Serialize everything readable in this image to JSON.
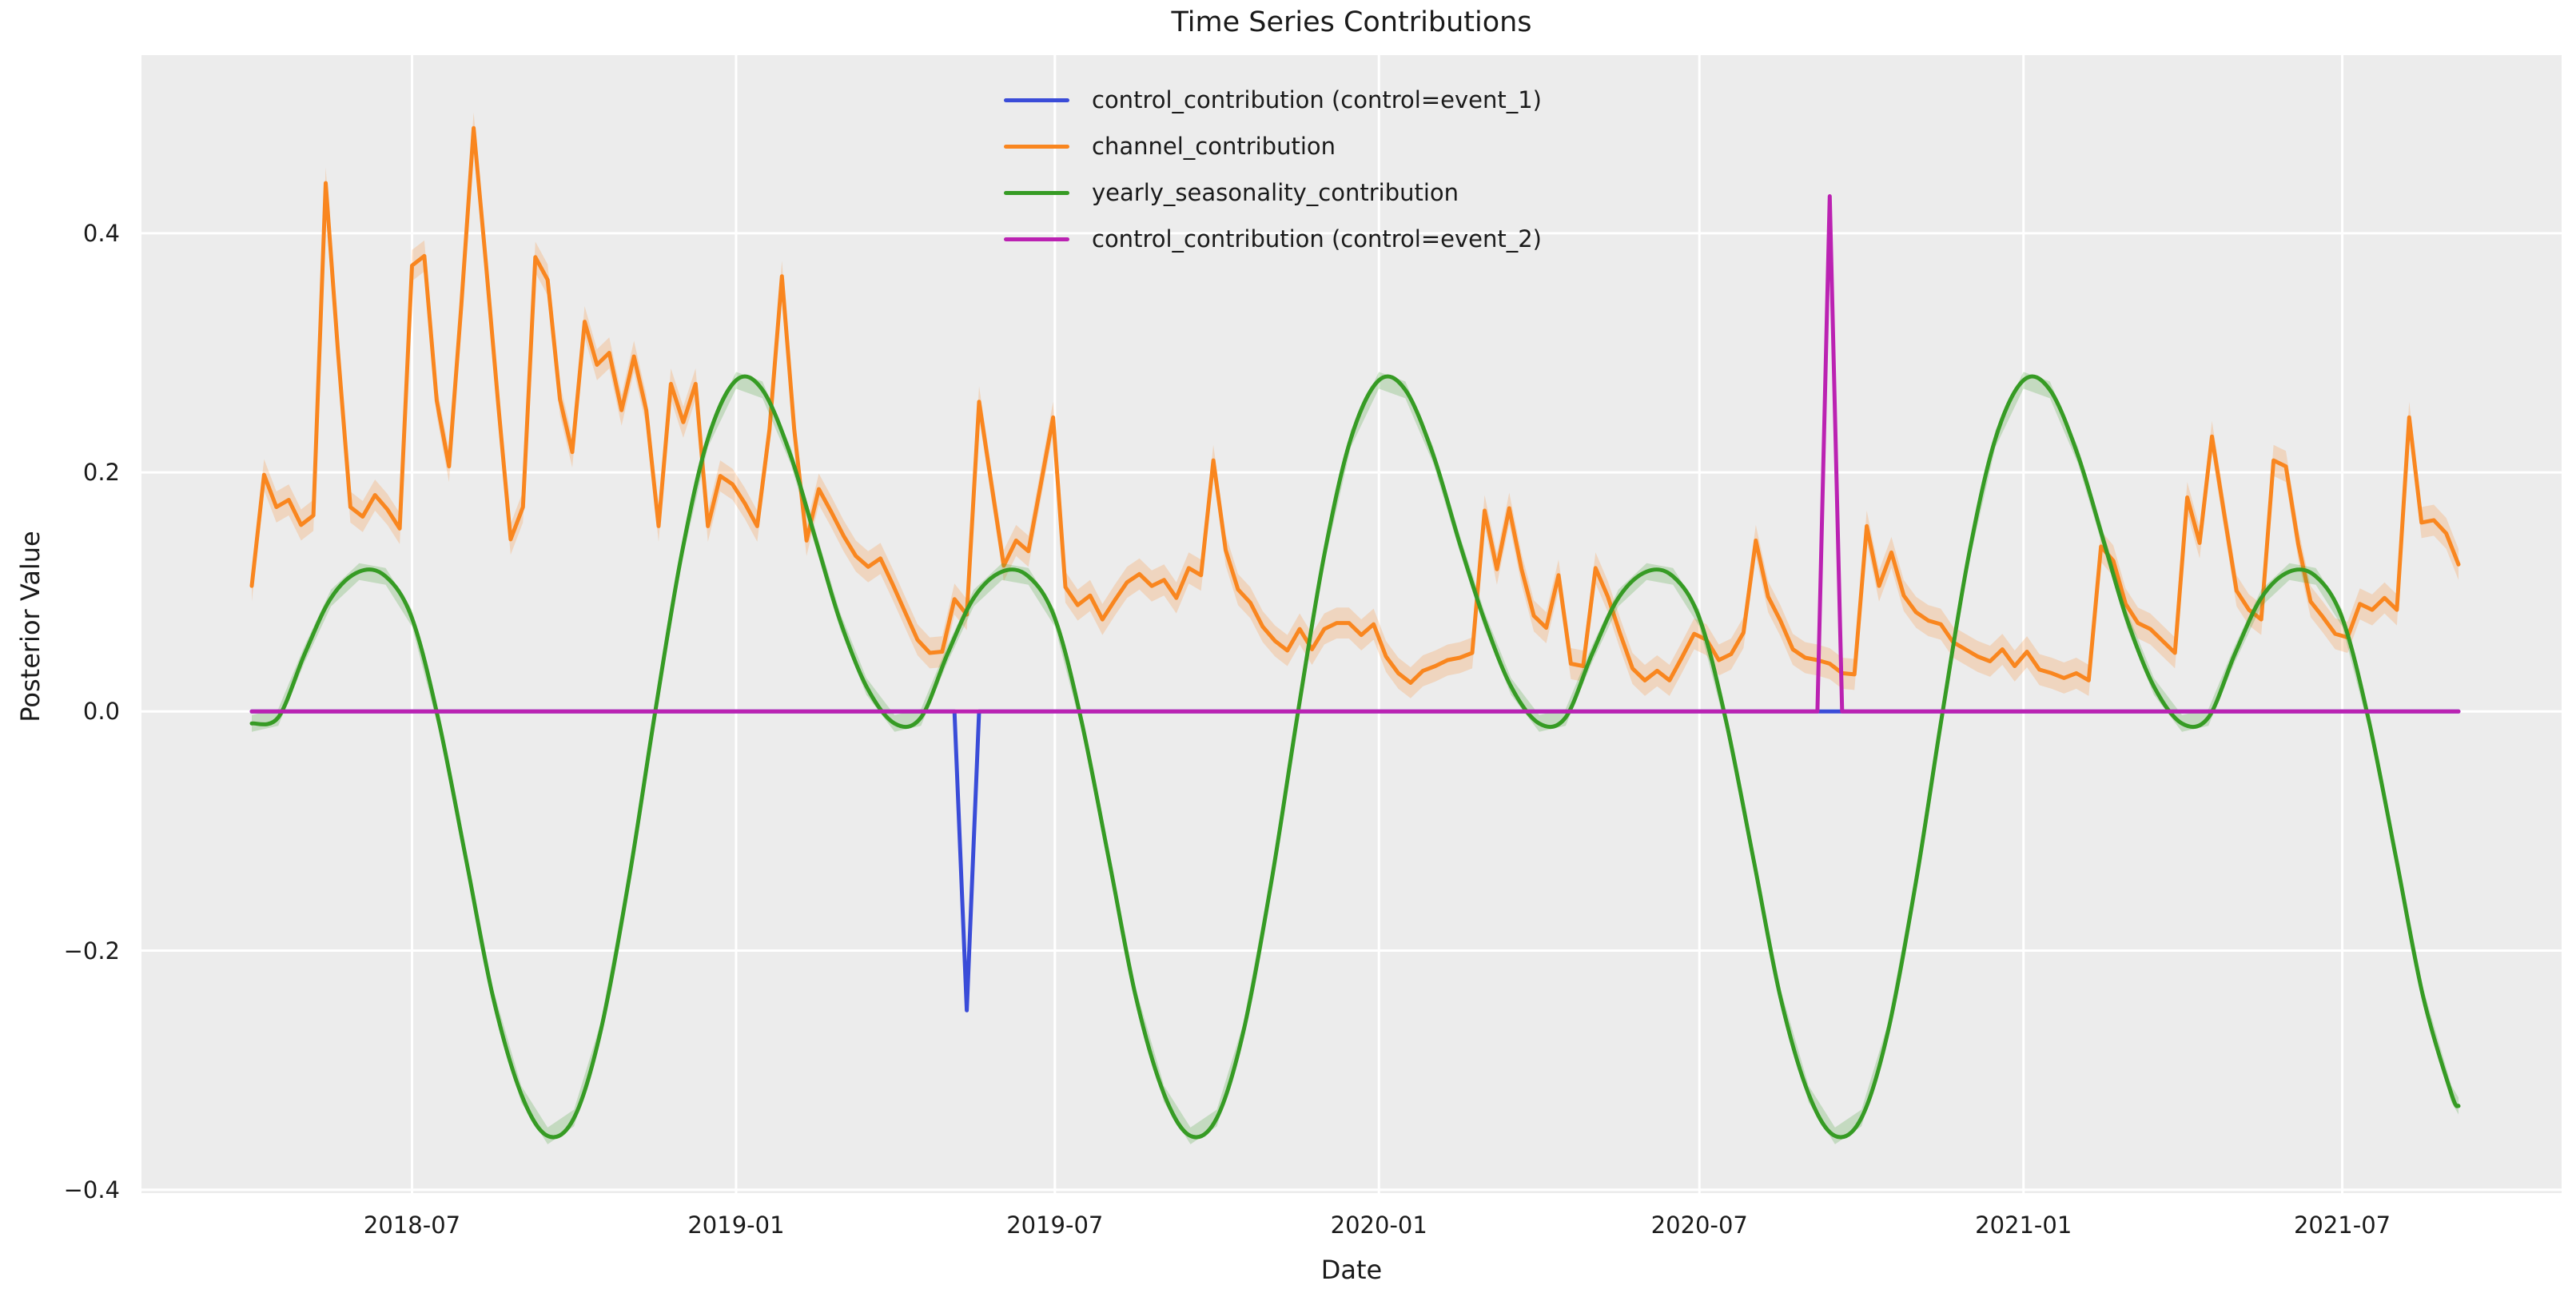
{
  "title": "Time Series Contributions",
  "axes": {
    "xlabel": "Date",
    "ylabel": "Posterior Value",
    "x_ticks": [
      {
        "label": "2018-07",
        "date": "2018-07-01"
      },
      {
        "label": "2019-01",
        "date": "2019-01-01"
      },
      {
        "label": "2019-07",
        "date": "2019-07-01"
      },
      {
        "label": "2020-01",
        "date": "2020-01-01"
      },
      {
        "label": "2020-07",
        "date": "2020-07-01"
      },
      {
        "label": "2021-01",
        "date": "2021-01-01"
      },
      {
        "label": "2021-07",
        "date": "2021-07-01"
      }
    ],
    "y_ticks": [
      {
        "label": "0.4",
        "value": 0.4
      },
      {
        "label": "0.2",
        "value": 0.2
      },
      {
        "label": "0.0",
        "value": 0.0
      },
      {
        "label": "−0.2",
        "value": -0.2
      },
      {
        "label": "−0.4",
        "value": -0.4
      }
    ],
    "y_limits": [
      -0.403,
      0.549
    ],
    "grid": true,
    "background": "#ececec",
    "gridline_color": "#ffffff"
  },
  "legend": [
    {
      "label": "control_contribution (control=event_1)",
      "series": "control_event_1"
    },
    {
      "label": "channel_contribution",
      "series": "channel"
    },
    {
      "label": "yearly_seasonality_contribution",
      "series": "yearly_seasonality"
    },
    {
      "label": "control_contribution (control=event_2)",
      "series": "control_event_2"
    }
  ],
  "chart_data": {
    "type": "line",
    "x_axis": "weekly dates 2018-04-01 to 2021-09-05",
    "legend_position": "upper center (no frame)",
    "series": [
      {
        "name": "control_event_1",
        "color": "#3a4cd8",
        "band_halfwidth": 0.0,
        "points": [
          [
            "2018-04-01",
            0
          ],
          [
            "2019-05-05",
            0
          ],
          [
            "2019-05-12",
            -0.25
          ],
          [
            "2019-05-19",
            0
          ],
          [
            "2021-09-05",
            0
          ]
        ]
      },
      {
        "name": "channel",
        "color": "#f9861f",
        "band_halfwidth": 0.013,
        "band_color": "#f9861f",
        "weekly": {
          "start": "2018-04-01",
          "step_days": 7,
          "values": [
            0.105,
            0.198,
            0.171,
            0.177,
            0.156,
            0.164,
            0.442,
            0.3,
            0.171,
            0.163,
            0.181,
            0.169,
            0.153,
            0.373,
            0.381,
            0.26,
            0.205,
            0.34,
            0.488,
            0.374,
            0.256,
            0.144,
            0.171,
            0.38,
            0.361,
            0.261,
            0.217,
            0.326,
            0.29,
            0.3,
            0.252,
            0.297,
            0.252,
            0.155,
            0.274,
            0.242,
            0.274,
            0.155,
            0.197,
            0.19,
            0.174,
            0.155,
            0.236,
            0.364,
            0.236,
            0.143,
            0.186,
            0.167,
            0.147,
            0.13,
            0.121,
            0.128,
            0.106,
            0.083,
            0.06,
            0.049,
            0.05,
            0.094,
            0.081,
            0.259,
            0.19,
            0.122,
            0.143,
            0.134,
            0.19,
            0.246,
            0.104,
            0.089,
            0.097,
            0.077,
            0.093,
            0.108,
            0.115,
            0.105,
            0.11,
            0.095,
            0.12,
            0.114,
            0.21,
            0.135,
            0.102,
            0.091,
            0.071,
            0.059,
            0.051,
            0.069,
            0.052,
            0.069,
            0.074,
            0.074,
            0.064,
            0.073,
            0.046,
            0.032,
            0.024,
            0.034,
            0.038,
            0.043,
            0.045,
            0.049,
            0.168,
            0.119,
            0.17,
            0.119,
            0.08,
            0.07,
            0.114,
            0.04,
            0.038,
            0.12,
            0.096,
            0.065,
            0.036,
            0.026,
            0.034,
            0.026,
            0.045,
            0.065,
            0.06,
            0.043,
            0.048,
            0.066,
            0.143,
            0.096,
            0.076,
            0.052,
            0.045,
            0.043,
            0.04,
            0.032,
            0.031,
            0.155,
            0.105,
            0.133,
            0.097,
            0.083,
            0.076,
            0.073,
            0.058,
            0.052,
            0.046,
            0.042,
            0.052,
            0.038,
            0.05,
            0.035,
            0.032,
            0.028,
            0.032,
            0.026,
            0.138,
            0.126,
            0.09,
            0.074,
            0.069,
            0.059,
            0.049,
            0.179,
            0.141,
            0.23,
            0.165,
            0.101,
            0.085,
            0.077,
            0.21,
            0.205,
            0.14,
            0.092,
            0.079,
            0.065,
            0.062,
            0.09,
            0.085,
            0.095,
            0.085,
            0.246,
            0.158,
            0.16,
            0.149,
            0.123
          ]
        }
      },
      {
        "name": "yearly_seasonality",
        "color": "#369b24",
        "band_halfwidth": 0.007,
        "band_color": "#369b24",
        "smooth": true,
        "points": [
          [
            "2018-04-01",
            -0.01
          ],
          [
            "2018-04-16",
            -0.005
          ],
          [
            "2018-05-01",
            0.048
          ],
          [
            "2018-05-16",
            0.095
          ],
          [
            "2018-06-01",
            0.117
          ],
          [
            "2018-06-16",
            0.113
          ],
          [
            "2018-07-01",
            0.078
          ],
          [
            "2018-07-16",
            -0.007
          ],
          [
            "2018-08-01",
            -0.126
          ],
          [
            "2018-08-16",
            -0.239
          ],
          [
            "2018-09-01",
            -0.32
          ],
          [
            "2018-09-16",
            -0.355
          ],
          [
            "2018-10-01",
            -0.34
          ],
          [
            "2018-10-16",
            -0.268
          ],
          [
            "2018-11-01",
            -0.142
          ],
          [
            "2018-11-16",
            -0.001
          ],
          [
            "2018-12-01",
            0.131
          ],
          [
            "2018-12-16",
            0.228
          ],
          [
            "2019-01-01",
            0.277
          ],
          [
            "2019-01-16",
            0.269
          ],
          [
            "2019-02-01",
            0.214
          ],
          [
            "2019-02-16",
            0.14
          ],
          [
            "2019-03-01",
            0.076
          ],
          [
            "2019-03-16",
            0.021
          ],
          [
            "2019-04-01",
            -0.01
          ],
          [
            "2019-04-16",
            -0.005
          ],
          [
            "2019-05-01",
            0.048
          ],
          [
            "2019-05-16",
            0.095
          ],
          [
            "2019-06-01",
            0.117
          ],
          [
            "2019-06-16",
            0.113
          ],
          [
            "2019-07-01",
            0.078
          ],
          [
            "2019-07-16",
            -0.007
          ],
          [
            "2019-08-01",
            -0.126
          ],
          [
            "2019-08-16",
            -0.239
          ],
          [
            "2019-09-01",
            -0.32
          ],
          [
            "2019-09-16",
            -0.355
          ],
          [
            "2019-10-01",
            -0.34
          ],
          [
            "2019-10-16",
            -0.268
          ],
          [
            "2019-11-01",
            -0.142
          ],
          [
            "2019-11-16",
            -0.001
          ],
          [
            "2019-12-01",
            0.131
          ],
          [
            "2019-12-16",
            0.228
          ],
          [
            "2020-01-01",
            0.277
          ],
          [
            "2020-01-16",
            0.269
          ],
          [
            "2020-02-01",
            0.214
          ],
          [
            "2020-02-16",
            0.14
          ],
          [
            "2020-03-01",
            0.076
          ],
          [
            "2020-03-16",
            0.021
          ],
          [
            "2020-04-01",
            -0.01
          ],
          [
            "2020-04-16",
            -0.005
          ],
          [
            "2020-05-01",
            0.048
          ],
          [
            "2020-05-16",
            0.095
          ],
          [
            "2020-06-01",
            0.117
          ],
          [
            "2020-06-16",
            0.113
          ],
          [
            "2020-07-01",
            0.078
          ],
          [
            "2020-07-16",
            -0.007
          ],
          [
            "2020-08-01",
            -0.126
          ],
          [
            "2020-08-16",
            -0.239
          ],
          [
            "2020-09-01",
            -0.32
          ],
          [
            "2020-09-16",
            -0.355
          ],
          [
            "2020-10-01",
            -0.34
          ],
          [
            "2020-10-16",
            -0.268
          ],
          [
            "2020-11-01",
            -0.142
          ],
          [
            "2020-11-16",
            -0.001
          ],
          [
            "2020-12-01",
            0.131
          ],
          [
            "2020-12-16",
            0.228
          ],
          [
            "2021-01-01",
            0.277
          ],
          [
            "2021-01-16",
            0.269
          ],
          [
            "2021-02-01",
            0.214
          ],
          [
            "2021-02-16",
            0.14
          ],
          [
            "2021-03-01",
            0.076
          ],
          [
            "2021-03-16",
            0.021
          ],
          [
            "2021-04-01",
            -0.01
          ],
          [
            "2021-04-16",
            -0.005
          ],
          [
            "2021-05-01",
            0.048
          ],
          [
            "2021-05-16",
            0.095
          ],
          [
            "2021-06-01",
            0.117
          ],
          [
            "2021-06-16",
            0.113
          ],
          [
            "2021-07-01",
            0.078
          ],
          [
            "2021-07-16",
            -0.007
          ],
          [
            "2021-08-01",
            -0.126
          ],
          [
            "2021-08-16",
            -0.239
          ],
          [
            "2021-09-01",
            -0.32
          ],
          [
            "2021-09-05",
            -0.33
          ]
        ]
      },
      {
        "name": "control_event_2",
        "color": "#bb22b2",
        "band_halfwidth": 0.0,
        "points": [
          [
            "2018-04-01",
            0
          ],
          [
            "2020-09-06",
            0
          ],
          [
            "2020-09-13",
            0.431
          ],
          [
            "2020-09-20",
            0
          ],
          [
            "2021-09-05",
            0
          ]
        ]
      }
    ]
  }
}
